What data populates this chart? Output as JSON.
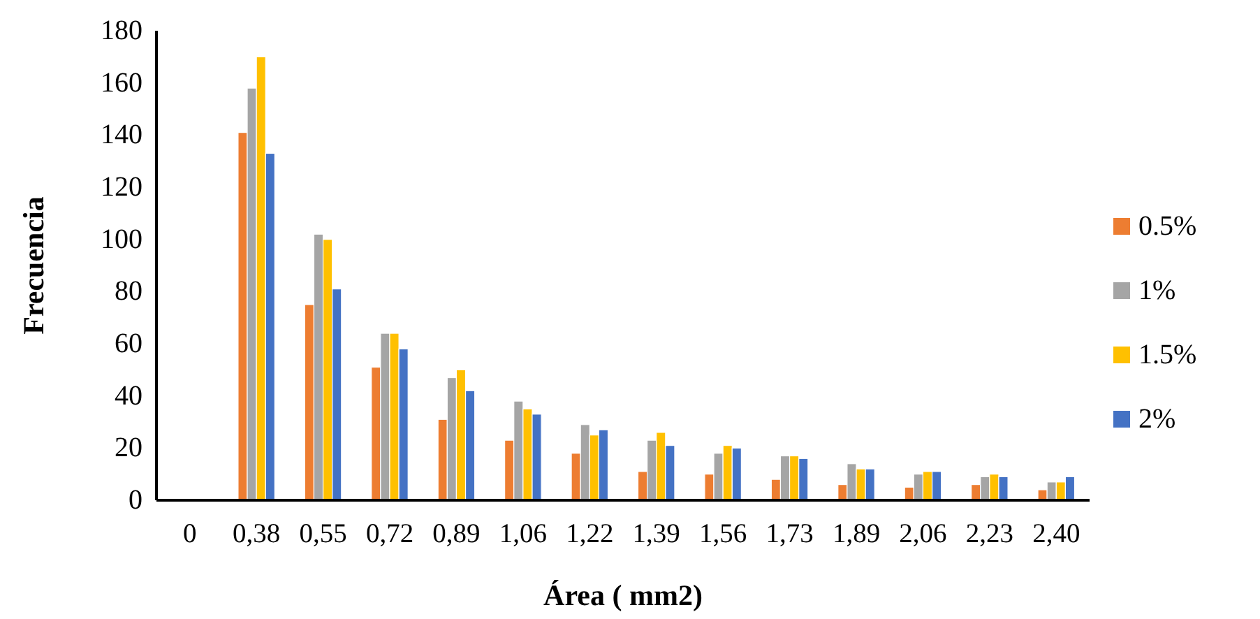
{
  "chart_data": {
    "type": "bar",
    "xlabel": "Área ( mm2)",
    "ylabel": "Frecuencia",
    "categories": [
      "0",
      "0,38",
      "0,55",
      "0,72",
      "0,89",
      "1,06",
      "1,22",
      "1,39",
      "1,56",
      "1,73",
      "1,89",
      "2,06",
      "2,23",
      "2,40"
    ],
    "series": [
      {
        "name": "0.5%",
        "color": "#ed7d31",
        "values": [
          null,
          141,
          75,
          51,
          31,
          23,
          18,
          11,
          10,
          8,
          6,
          5,
          6,
          4
        ]
      },
      {
        "name": "1%",
        "color": "#a5a5a5",
        "values": [
          null,
          158,
          102,
          64,
          47,
          38,
          29,
          23,
          18,
          17,
          14,
          10,
          9,
          7
        ]
      },
      {
        "name": "1.5%",
        "color": "#ffc000",
        "values": [
          null,
          170,
          100,
          64,
          50,
          35,
          25,
          26,
          21,
          17,
          12,
          11,
          10,
          7
        ]
      },
      {
        "name": "2%",
        "color": "#4472c4",
        "values": [
          null,
          133,
          81,
          58,
          42,
          33,
          27,
          21,
          20,
          16,
          12,
          11,
          9,
          9
        ]
      }
    ],
    "ylim": [
      0,
      180
    ],
    "yticks": [
      0,
      20,
      40,
      60,
      80,
      100,
      120,
      140,
      160,
      180
    ],
    "grid": false,
    "legend": "right"
  }
}
